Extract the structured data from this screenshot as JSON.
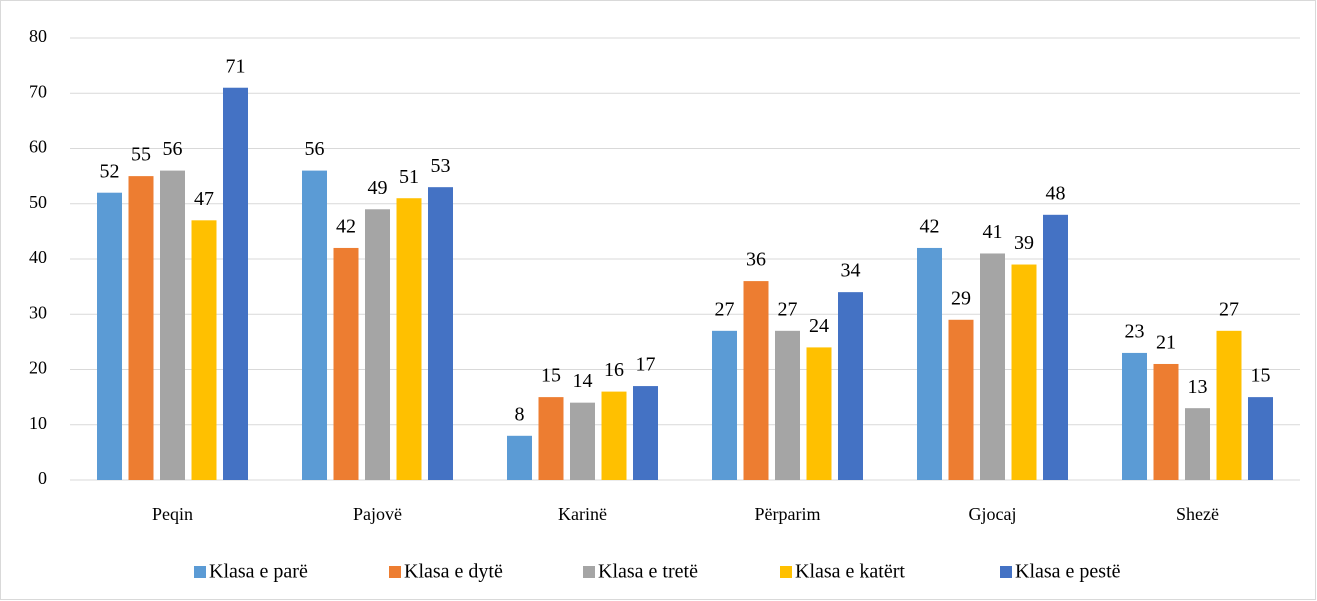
{
  "chart_data": {
    "type": "bar",
    "categories": [
      "Peqin",
      "Pajovë",
      "Karinë",
      "Përparim",
      "Gjocaj",
      "Shezë"
    ],
    "series": [
      {
        "name": "Klasa e parë",
        "color": "#5b9bd5",
        "values": [
          52,
          56,
          8,
          27,
          42,
          23
        ]
      },
      {
        "name": "Klasa e dytë",
        "color": "#ed7d31",
        "values": [
          55,
          42,
          15,
          36,
          29,
          21
        ]
      },
      {
        "name": "Klasa e tretë",
        "color": "#a5a5a5",
        "values": [
          56,
          49,
          14,
          27,
          41,
          13
        ]
      },
      {
        "name": "Klasa e katërt",
        "color": "#ffc000",
        "values": [
          47,
          51,
          16,
          24,
          39,
          27
        ]
      },
      {
        "name": "Klasa e pestë",
        "color": "#4472c4",
        "values": [
          71,
          53,
          17,
          34,
          48,
          15
        ]
      }
    ],
    "ylim": [
      0,
      80
    ],
    "yticks": [
      0,
      10,
      20,
      30,
      40,
      50,
      60,
      70,
      80
    ],
    "grid": true,
    "legend": "bottom"
  }
}
